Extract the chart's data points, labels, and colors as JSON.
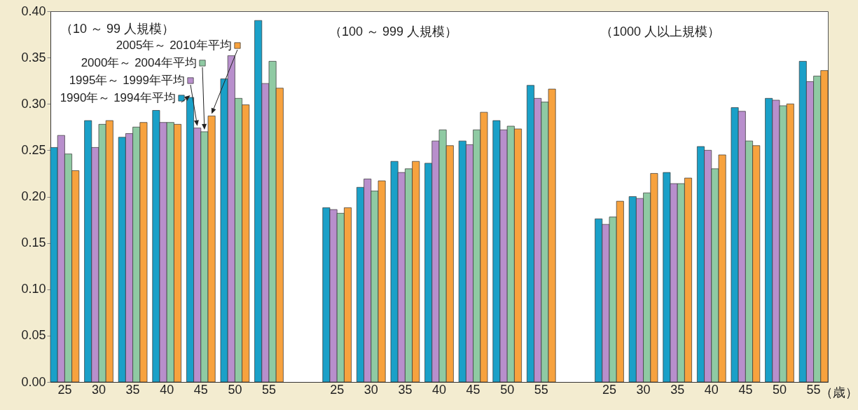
{
  "chart_data": {
    "type": "bar",
    "legend": "top left",
    "xlabel": "（歳）",
    "annotations": [
      "（10 ～ 99 人規模）",
      "（100 ～ 999 人規模）",
      "（1000 人以上規模）"
    ],
    "categories": [
      "25",
      "30",
      "35",
      "40",
      "45",
      "50",
      "55",
      null,
      "25",
      "30",
      "35",
      "40",
      "45",
      "50",
      "55",
      null,
      "25",
      "30",
      "35",
      "40",
      "45",
      "50",
      "55"
    ],
    "ylim": [
      0,
      0.4
    ],
    "yticks": [
      {
        "value": 0,
        "label": "0.00"
      },
      0.05,
      {
        "value": 0.1,
        "label": "0.10"
      },
      0.15,
      {
        "value": 0.2,
        "label": "0.20"
      },
      0.25,
      {
        "value": 0.3,
        "label": "0.30"
      },
      0.35,
      {
        "value": 0.4,
        "label": "0.40"
      }
    ],
    "series": [
      {
        "name": "1990年～ 1994年平均",
        "color": "#1aa0c8",
        "values": [
          0.253,
          0.282,
          0.264,
          0.293,
          0.307,
          0.327,
          0.39,
          null,
          0.188,
          0.21,
          0.238,
          0.236,
          0.26,
          0.282,
          0.32,
          null,
          0.176,
          0.2,
          0.226,
          0.254,
          0.296,
          0.306,
          0.346
        ]
      },
      {
        "name": "1995年～ 1999年平均",
        "color": "#b88fcc",
        "values": [
          0.266,
          0.253,
          0.268,
          0.28,
          0.274,
          0.352,
          0.322,
          null,
          0.186,
          0.219,
          0.226,
          0.26,
          0.256,
          0.272,
          0.306,
          null,
          0.17,
          0.198,
          0.214,
          0.25,
          0.292,
          0.304,
          0.324
        ]
      },
      {
        "name": "2000年～ 2004年平均",
        "color": "#8fcaa3",
        "values": [
          0.246,
          0.278,
          0.275,
          0.28,
          0.27,
          0.306,
          0.346,
          null,
          0.182,
          0.206,
          0.23,
          0.272,
          0.272,
          0.276,
          0.302,
          null,
          0.178,
          0.204,
          0.214,
          0.23,
          0.26,
          0.298,
          0.33
        ]
      },
      {
        "name": "2005年～ 2010年平均",
        "color": "#f7a23e",
        "values": [
          0.228,
          0.282,
          0.28,
          0.278,
          0.287,
          0.299,
          0.317,
          null,
          0.188,
          0.217,
          0.238,
          0.255,
          0.291,
          0.273,
          0.316,
          null,
          0.195,
          0.225,
          0.22,
          0.245,
          0.255,
          0.3,
          0.336
        ]
      }
    ]
  }
}
